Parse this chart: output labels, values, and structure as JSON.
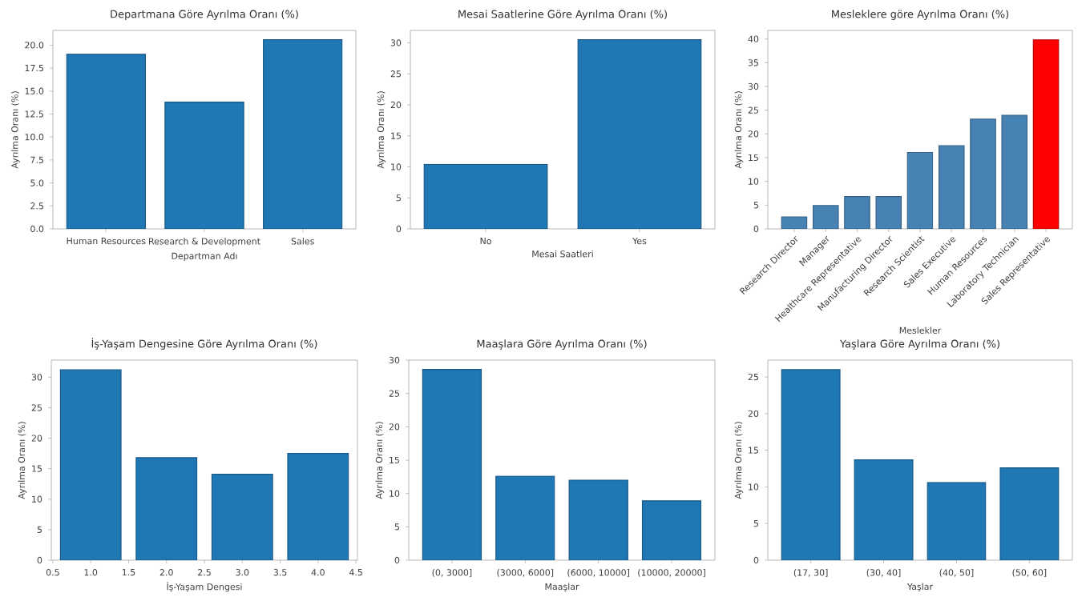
{
  "chart_data": [
    {
      "type": "bar",
      "title": "Departmana Göre Ayrılma Oranı (%)",
      "xlabel": "Departman Adı",
      "ylabel": "Ayrılma Oranı (%)",
      "categories": [
        "Human Resources",
        "Research & Development",
        "Sales"
      ],
      "values": [
        19.0,
        13.8,
        20.6
      ],
      "color": "#1f77b4",
      "ylim": [
        0,
        21.6
      ],
      "yticks": [
        {
          "value": 0,
          "label": "0.0"
        },
        {
          "value": 2.5,
          "label": "2.5"
        },
        {
          "value": 5,
          "label": "5.0"
        },
        {
          "value": 7.5,
          "label": "7.5"
        },
        {
          "value": 10,
          "label": "10.0"
        },
        {
          "value": 12.5,
          "label": "12.5"
        },
        {
          "value": 15,
          "label": "15.0"
        },
        {
          "value": 17.5,
          "label": "17.5"
        },
        {
          "value": 20,
          "label": "20.0"
        }
      ]
    },
    {
      "type": "bar",
      "title": "Mesai Saatlerine Göre Ayrılma Oranı (%)",
      "xlabel": "Mesai Saatleri",
      "ylabel": "Ayrılma Oranı (%)",
      "categories": [
        "No",
        "Yes"
      ],
      "values": [
        10.4,
        30.5
      ],
      "color": "#1f77b4",
      "ylim": [
        0,
        32
      ],
      "yticks": [
        0,
        5,
        10,
        15,
        20,
        25,
        30
      ]
    },
    {
      "type": "bar",
      "title": "Mesleklere göre Ayrılma Oranı (%)",
      "xlabel": "Meslekler",
      "ylabel": "Ayrılma Oranı (%)",
      "categories": [
        "Research Director",
        "Manager",
        "Healthcare Representative",
        "Manufacturing Director",
        "Research Scientist",
        "Sales Executive",
        "Human Resources",
        "Laboratory Technician",
        "Sales Representative"
      ],
      "values": [
        2.5,
        4.9,
        6.8,
        6.8,
        16.1,
        17.5,
        23.1,
        23.9,
        39.8
      ],
      "colors": [
        "#4682b4",
        "#4682b4",
        "#4682b4",
        "#4682b4",
        "#4682b4",
        "#4682b4",
        "#4682b4",
        "#4682b4",
        "#ff0000"
      ],
      "ylim": [
        0,
        41.8
      ],
      "yticks": [
        0,
        5,
        10,
        15,
        20,
        25,
        30,
        35,
        40
      ]
    },
    {
      "type": "bar",
      "title": "İş-Yaşam Dengesine Göre Ayrılma Oranı (%)",
      "xlabel": "İş-Yaşam Dengesi",
      "ylabel": "Ayrılma Oranı (%)",
      "x": [
        1,
        2,
        3,
        4
      ],
      "values": [
        31.2,
        16.8,
        14.1,
        17.5
      ],
      "color": "#1f77b4",
      "xlim": [
        0.48,
        4.52
      ],
      "ylim": [
        0,
        32.8
      ],
      "xticks": [
        {
          "value": 0.5,
          "label": "0.5"
        },
        {
          "value": 1,
          "label": "1.0"
        },
        {
          "value": 1.5,
          "label": "1.5"
        },
        {
          "value": 2,
          "label": "2.0"
        },
        {
          "value": 2.5,
          "label": "2.5"
        },
        {
          "value": 3,
          "label": "3.0"
        },
        {
          "value": 3.5,
          "label": "3.5"
        },
        {
          "value": 4,
          "label": "4.0"
        },
        {
          "value": 4.5,
          "label": "4.5"
        }
      ],
      "yticks": [
        0,
        5,
        10,
        15,
        20,
        25,
        30
      ]
    },
    {
      "type": "bar",
      "title": "Maaşlara Göre Ayrılma Oranı (%)",
      "xlabel": "Maaşlar",
      "ylabel": "Ayrılma Oranı (%)",
      "categories": [
        "(0, 3000]",
        "(3000, 6000]",
        "(6000, 10000]",
        "(10000, 20000]"
      ],
      "values": [
        28.6,
        12.6,
        12.0,
        8.9
      ],
      "color": "#1f77b4",
      "ylim": [
        0,
        30
      ],
      "yticks": [
        0,
        5,
        10,
        15,
        20,
        25,
        30
      ]
    },
    {
      "type": "bar",
      "title": "Yaşlara Göre Ayrılma Oranı (%)",
      "xlabel": "Yaşlar",
      "ylabel": "Ayrılma Oranı (%)",
      "categories": [
        "(17, 30]",
        "(30, 40]",
        "(40, 50]",
        "(50, 60]"
      ],
      "values": [
        26.0,
        13.7,
        10.6,
        12.6
      ],
      "color": "#1f77b4",
      "ylim": [
        0,
        27.3
      ],
      "yticks": [
        0,
        5,
        10,
        15,
        20,
        25
      ]
    }
  ]
}
